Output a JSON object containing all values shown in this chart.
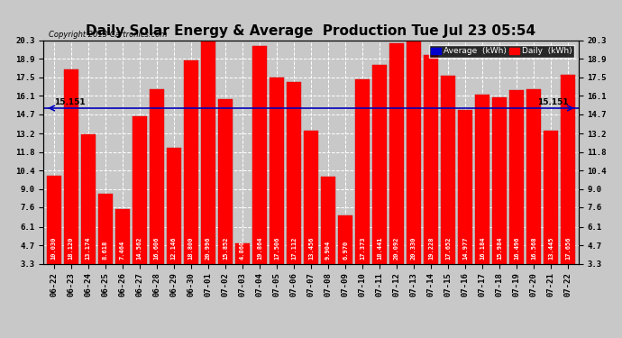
{
  "title": "Daily Solar Energy & Average  Production Tue Jul 23 05:54",
  "copyright": "Copyright 2013 Cartronics.com",
  "average_value": 15.151,
  "average_label": "15.151",
  "bar_color": "#ff0000",
  "average_line_color": "#0000bb",
  "background_color": "#c8c8c8",
  "plot_bg_color": "#c8c8c8",
  "ylim": [
    3.3,
    20.3
  ],
  "yticks": [
    3.3,
    4.7,
    6.1,
    7.6,
    9.0,
    10.4,
    11.8,
    13.2,
    14.7,
    16.1,
    17.5,
    18.9,
    20.3
  ],
  "categories": [
    "06-22",
    "06-23",
    "06-24",
    "06-25",
    "06-26",
    "06-27",
    "06-28",
    "06-29",
    "06-30",
    "07-01",
    "07-02",
    "07-03",
    "07-04",
    "07-05",
    "07-06",
    "07-07",
    "07-08",
    "07-09",
    "07-10",
    "07-11",
    "07-12",
    "07-13",
    "07-14",
    "07-15",
    "07-16",
    "07-17",
    "07-18",
    "07-19",
    "07-20",
    "07-21",
    "07-22"
  ],
  "values": [
    10.03,
    18.12,
    13.174,
    8.618,
    7.464,
    14.562,
    16.606,
    12.146,
    18.8,
    20.996,
    15.852,
    4.86,
    19.864,
    17.506,
    17.112,
    13.456,
    9.904,
    6.97,
    17.373,
    18.441,
    20.092,
    20.33,
    19.228,
    17.652,
    14.977,
    16.184,
    15.984,
    16.496,
    16.568,
    13.445,
    17.656
  ],
  "legend_avg_color": "#0000cc",
  "legend_daily_color": "#ff0000",
  "legend_avg_text": "Average  (kWh)",
  "legend_daily_text": "Daily  (kWh)",
  "title_fontsize": 11,
  "tick_fontsize": 6.5,
  "bar_width": 0.82,
  "grid_color": "#ffffff",
  "grid_linestyle": "--"
}
